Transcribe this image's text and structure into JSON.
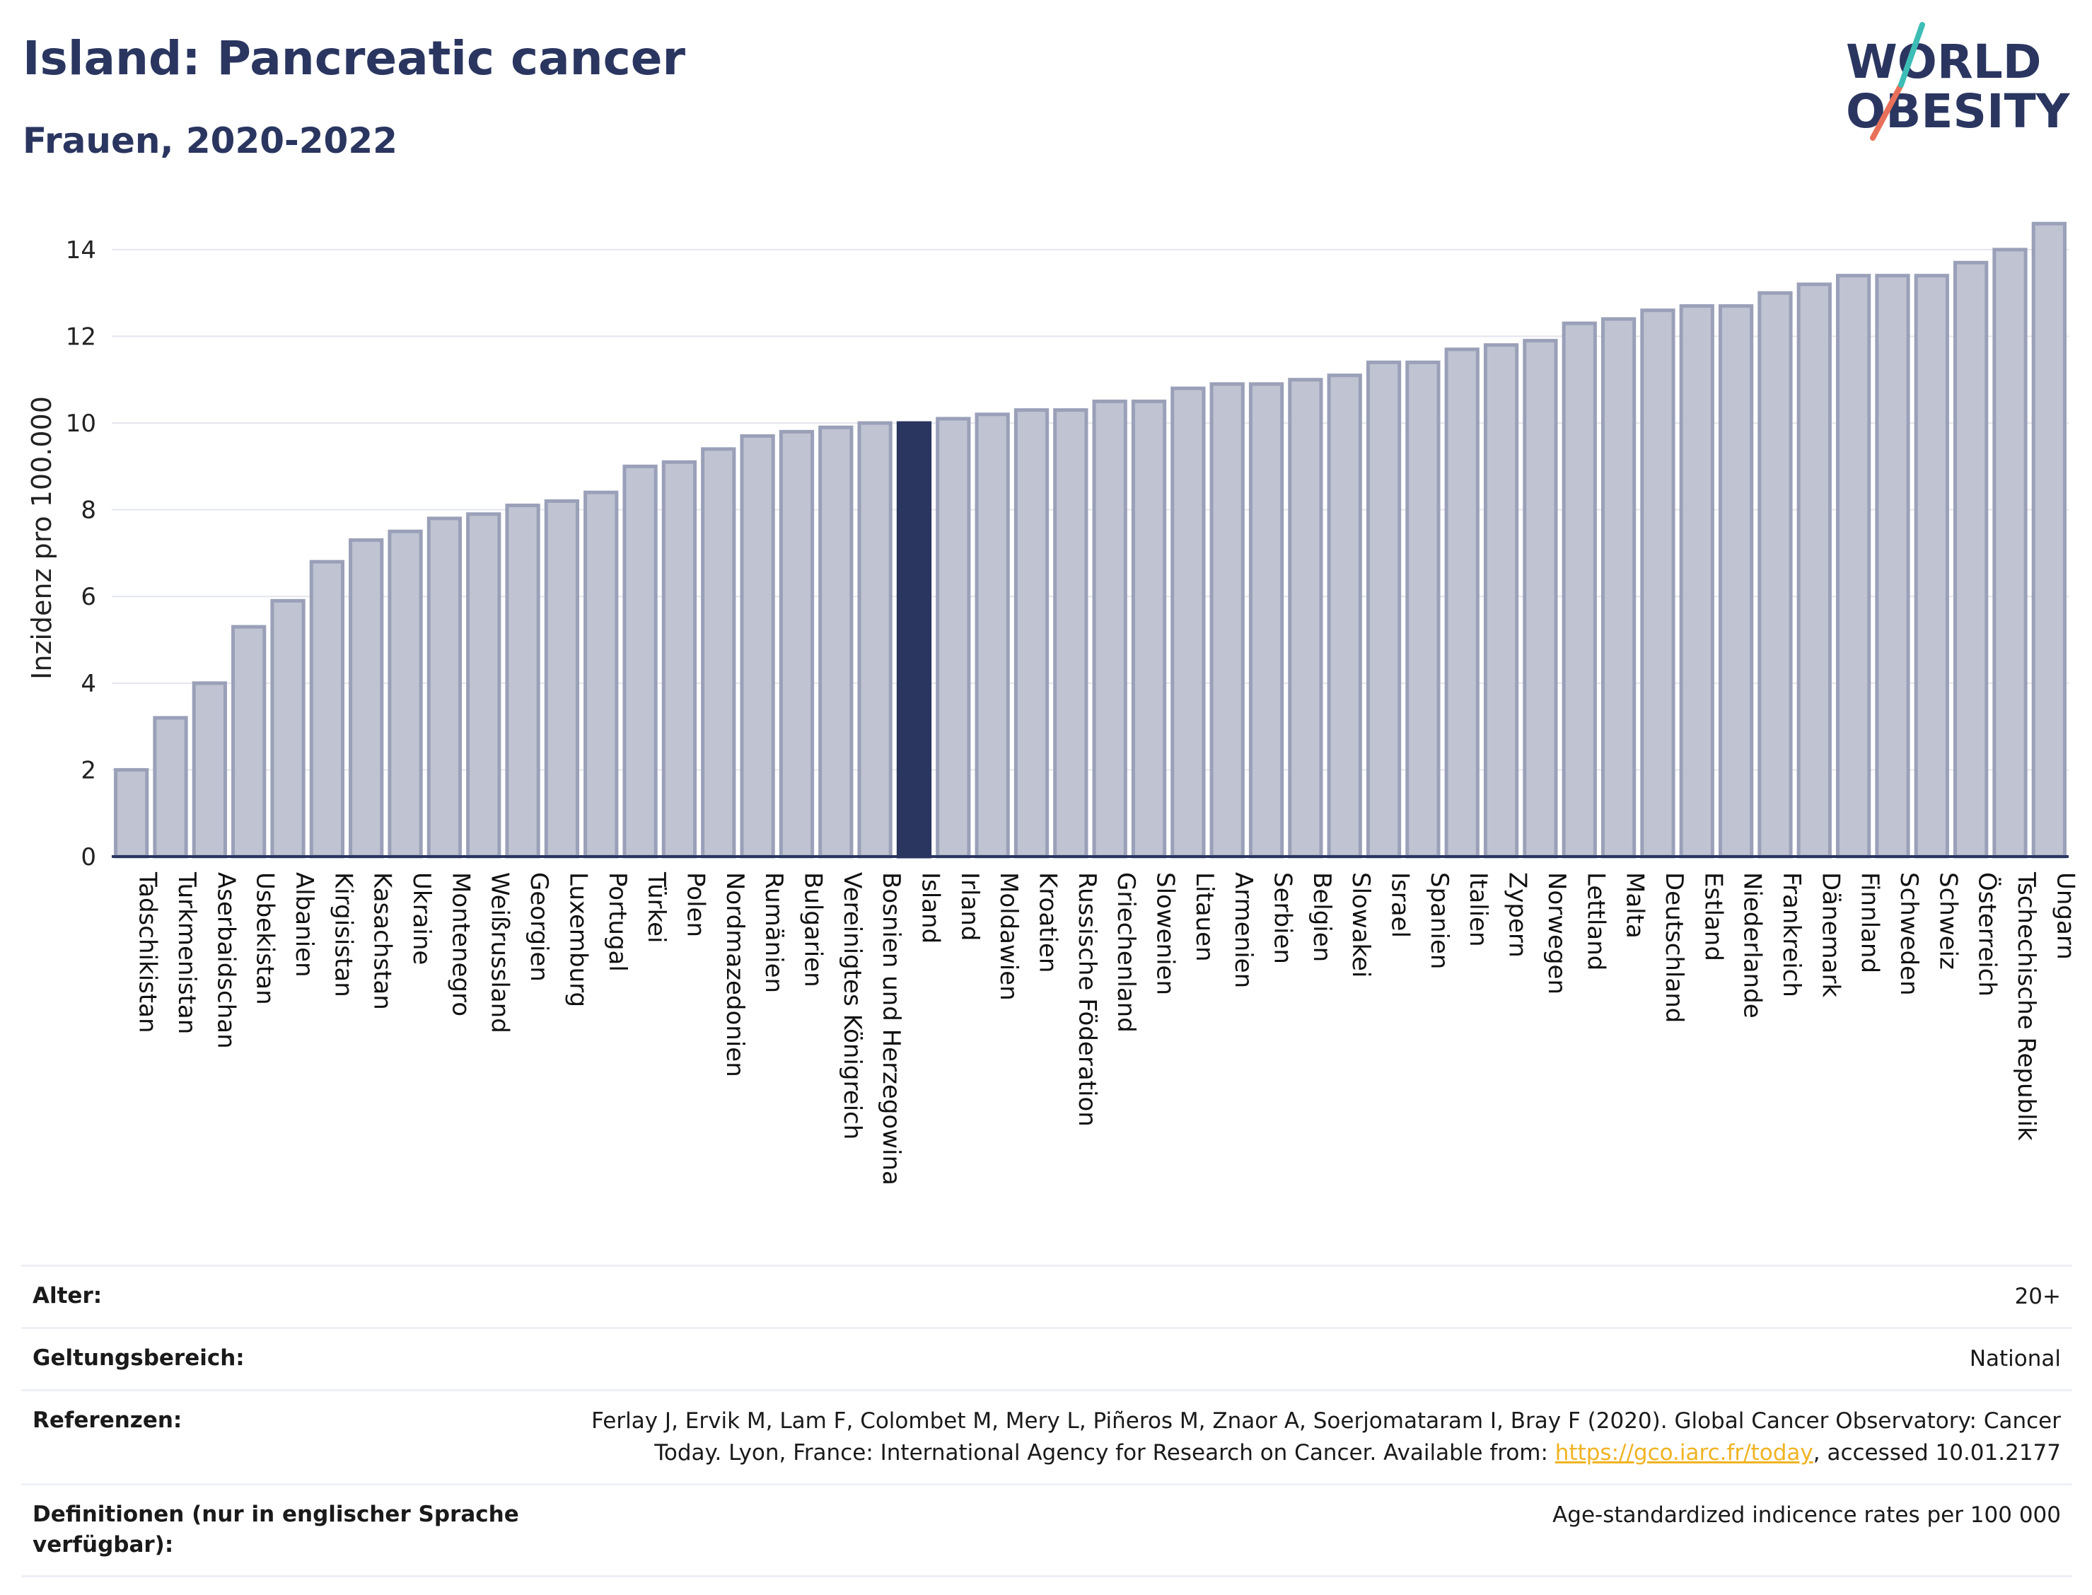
{
  "header": {
    "title": "Island: Pancreatic cancer",
    "subtitle": "Frauen, 2020-2022"
  },
  "logo": {
    "line1": "WORLD",
    "line2": "OBESITY"
  },
  "colors": {
    "bar_fill": "#bfc3d2",
    "bar_stroke": "#9aa0b8",
    "highlight": "#2a3660",
    "text": "#2a3660",
    "link": "#f0b323",
    "logo_teal": "#3dbdb5",
    "logo_coral": "#e8705a"
  },
  "chart_data": {
    "type": "bar",
    "ylabel": "Inzidenz pro 100.000",
    "xlabel": "",
    "ylim": [
      0,
      14.7
    ],
    "yticks": [
      0,
      2,
      4,
      6,
      8,
      10,
      12,
      14
    ],
    "grid": true,
    "highlight": "Island",
    "categories": [
      "Tadschikistan",
      "Turkmenistan",
      "Aserbaidschan",
      "Usbekistan",
      "Albanien",
      "Kirgisistan",
      "Kasachstan",
      "Ukraine",
      "Montenegro",
      "Weißrussland",
      "Georgien",
      "Luxemburg",
      "Portugal",
      "Türkei",
      "Polen",
      "Nordmazedonien",
      "Rumänien",
      "Bulgarien",
      "Vereinigtes Königreich",
      "Bosnien und Herzegowina",
      "Island",
      "Irland",
      "Moldawien",
      "Kroatien",
      "Russische Föderation",
      "Griechenland",
      "Slowenien",
      "Litauen",
      "Armenien",
      "Serbien",
      "Belgien",
      "Slowakei",
      "Israel",
      "Spanien",
      "Italien",
      "Zypern",
      "Norwegen",
      "Lettland",
      "Malta",
      "Deutschland",
      "Estland",
      "Niederlande",
      "Frankreich",
      "Dänemark",
      "Finnland",
      "Schweden",
      "Schweiz",
      "Österreich",
      "Tschechische Republik",
      "Ungarn"
    ],
    "values": [
      2.0,
      3.2,
      4.0,
      5.3,
      5.9,
      6.8,
      7.3,
      7.5,
      7.8,
      7.9,
      8.1,
      8.2,
      8.4,
      9.0,
      9.1,
      9.4,
      9.7,
      9.8,
      9.9,
      10.0,
      10.0,
      10.1,
      10.2,
      10.3,
      10.3,
      10.5,
      10.5,
      10.8,
      10.9,
      10.9,
      11.0,
      11.1,
      11.4,
      11.4,
      11.7,
      11.8,
      11.9,
      12.3,
      12.4,
      12.6,
      12.7,
      12.7,
      13.0,
      13.2,
      13.4,
      13.4,
      13.4,
      13.7,
      14.0,
      14.6
    ]
  },
  "meta": {
    "age_label": "Alter:",
    "age_value": "20+",
    "scope_label": "Geltungsbereich:",
    "scope_value": "National",
    "ref_label": "Referenzen:",
    "ref_text_1": "Ferlay J, Ervik M, Lam F, Colombet M, Mery L, Piñeros M, Znaor A, Soerjomataram I, Bray F (2020). Global Cancer Observatory: Cancer Today. Lyon, France: International Agency for Research on Cancer. Available from: ",
    "ref_link": "https://gco.iarc.fr/today",
    "ref_text_2": ", accessed 10.01.2177",
    "def_label": "Definitionen (nur in englischer Sprache verfügbar):",
    "def_value": "Age-standardized indicence rates per 100 000"
  }
}
